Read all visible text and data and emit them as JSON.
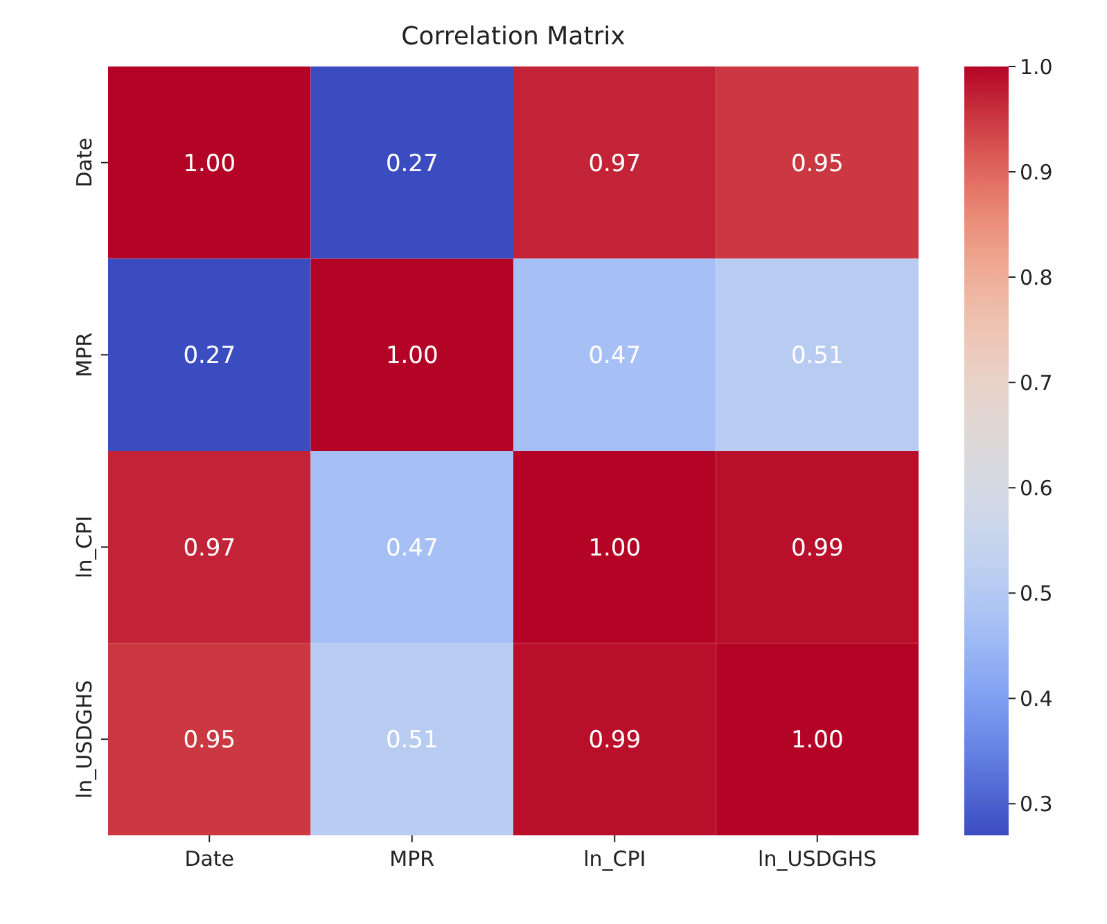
{
  "chart_data": {
    "type": "heatmap",
    "title": "Correlation Matrix",
    "categories": [
      "Date",
      "MPR",
      "ln_CPI",
      "ln_USDGHS"
    ],
    "y_categories": [
      "Date",
      "MPR",
      "ln_CPI",
      "ln_USDGHS"
    ],
    "cells": [
      [
        1.0,
        0.27,
        0.97,
        0.95
      ],
      [
        0.27,
        1.0,
        0.47,
        0.51
      ],
      [
        0.97,
        0.47,
        1.0,
        0.99
      ],
      [
        0.95,
        0.51,
        0.99,
        1.0
      ]
    ],
    "cell_labels": [
      [
        "1.00",
        "0.27",
        "0.97",
        "0.95"
      ],
      [
        "0.27",
        "1.00",
        "0.47",
        "0.51"
      ],
      [
        "0.97",
        "0.47",
        "1.00",
        "0.99"
      ],
      [
        "0.95",
        "0.51",
        "0.99",
        "1.00"
      ]
    ],
    "data_labels": true,
    "clim": [
      0.27,
      1.0
    ],
    "cticks": [
      {
        "value": 0.3,
        "label": "0.3"
      },
      {
        "value": 0.4,
        "label": "0.4"
      },
      {
        "value": 0.5,
        "label": "0.5"
      },
      {
        "value": 0.6,
        "label": "0.6"
      },
      {
        "value": 0.7,
        "label": "0.7"
      },
      {
        "value": 0.8,
        "label": "0.8"
      },
      {
        "value": 0.9,
        "label": "0.9"
      },
      {
        "value": 1.0,
        "label": "1.0"
      }
    ]
  }
}
